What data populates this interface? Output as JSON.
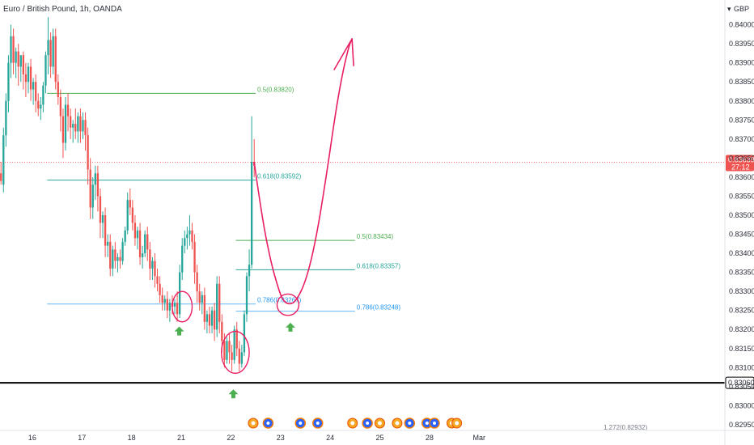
{
  "title": "Euro / British Pound, 1h, OANDA",
  "currency": "GBP",
  "colors": {
    "up": "#26a69a",
    "down": "#ef5350",
    "fib05": "#4caf50",
    "fib0618": "#26a69a",
    "fib0786": "#64b5f6",
    "fib0786_label": "#2196f3",
    "drawing": "#e91e63",
    "arrow": "#4caf50",
    "support": "#000000",
    "price_tag": "#ef5350"
  },
  "chart_data": {
    "type": "candlestick",
    "title": "Euro / British Pound, 1h, OANDA",
    "ylim": [
      0.82935,
      0.84065
    ],
    "xlim": [
      15.35,
      29.95
    ],
    "y_ticks": [
      "0.84000",
      "0.83950",
      "0.83900",
      "0.83850",
      "0.83800",
      "0.83750",
      "0.83700",
      "0.83650",
      "0.83600",
      "0.83550",
      "0.83500",
      "0.83450",
      "0.83400",
      "0.83350",
      "0.83300",
      "0.83250",
      "0.83200",
      "0.83150",
      "0.83100",
      "0.83050",
      "0.83000",
      "0.82950"
    ],
    "x_ticks": [
      {
        "label": "16",
        "t": 16
      },
      {
        "label": "17",
        "t": 17
      },
      {
        "label": "18",
        "t": 18
      },
      {
        "label": "21",
        "t": 19
      },
      {
        "label": "22",
        "t": 20
      },
      {
        "label": "23",
        "t": 21
      },
      {
        "label": "24",
        "t": 22
      },
      {
        "label": "25",
        "t": 23
      },
      {
        "label": "28",
        "t": 24
      },
      {
        "label": "Mar",
        "t": 25
      }
    ],
    "last_price": {
      "value": "0.83639",
      "countdown": "27:12",
      "y": 0.83639
    },
    "support_level": {
      "value": "0.83060",
      "y": 0.8306
    },
    "fib_levels": [
      {
        "label": "0.5(0.83820)",
        "y": 0.8382,
        "t0": 16.3,
        "t1": 20.5,
        "color_key": "fib05"
      },
      {
        "label": "0.618(0.83592)",
        "y": 0.83592,
        "t0": 16.3,
        "t1": 20.5,
        "color_key": "fib0618"
      },
      {
        "label": "0.786(0.83267)",
        "y": 0.83267,
        "t0": 16.3,
        "t1": 20.5,
        "color_key": "fib0786"
      },
      {
        "label": "0.5(0.83434)",
        "y": 0.83434,
        "t0": 20.1,
        "t1": 22.5,
        "color_key": "fib05"
      },
      {
        "label": "0.618(0.83357)",
        "y": 0.83357,
        "t0": 20.1,
        "t1": 22.5,
        "color_key": "fib0618"
      },
      {
        "label": "0.786(0.83248)",
        "y": 0.83248,
        "t0": 20.1,
        "t1": 22.5,
        "color_key": "fib0786"
      }
    ],
    "bottom_label": "1.272(0.82932)",
    "series": [
      {
        "t": 15.37,
        "o": 0.8361,
        "h": 0.8364,
        "c": 0.8359,
        "l": 0.8358
      },
      {
        "t": 15.42,
        "o": 0.8358,
        "h": 0.8373,
        "c": 0.8371,
        "l": 0.8356
      },
      {
        "t": 15.47,
        "o": 0.8371,
        "h": 0.8382,
        "c": 0.838,
        "l": 0.8368
      },
      {
        "t": 15.52,
        "o": 0.838,
        "h": 0.8392,
        "c": 0.839,
        "l": 0.8377
      },
      {
        "t": 15.57,
        "o": 0.839,
        "h": 0.84,
        "c": 0.8397,
        "l": 0.8386
      },
      {
        "t": 15.62,
        "o": 0.8397,
        "h": 0.8399,
        "c": 0.839,
        "l": 0.8387
      },
      {
        "t": 15.67,
        "o": 0.839,
        "h": 0.8394,
        "c": 0.8393,
        "l": 0.8386
      },
      {
        "t": 15.72,
        "o": 0.8393,
        "h": 0.8395,
        "c": 0.8389,
        "l": 0.8384
      },
      {
        "t": 15.77,
        "o": 0.8389,
        "h": 0.8392,
        "c": 0.8392,
        "l": 0.8385
      },
      {
        "t": 15.82,
        "o": 0.8392,
        "h": 0.8393,
        "c": 0.8387,
        "l": 0.8383
      },
      {
        "t": 15.87,
        "o": 0.8387,
        "h": 0.839,
        "c": 0.8385,
        "l": 0.8381
      },
      {
        "t": 15.92,
        "o": 0.8385,
        "h": 0.839,
        "c": 0.8389,
        "l": 0.8382
      },
      {
        "t": 15.97,
        "o": 0.8389,
        "h": 0.8391,
        "c": 0.8383,
        "l": 0.838
      },
      {
        "t": 16.02,
        "o": 0.8383,
        "h": 0.8386,
        "c": 0.8385,
        "l": 0.8379
      },
      {
        "t": 16.07,
        "o": 0.8385,
        "h": 0.8387,
        "c": 0.838,
        "l": 0.8377
      },
      {
        "t": 16.12,
        "o": 0.838,
        "h": 0.8382,
        "c": 0.8378,
        "l": 0.8376
      },
      {
        "t": 16.17,
        "o": 0.8378,
        "h": 0.8381,
        "c": 0.8379,
        "l": 0.8375
      },
      {
        "t": 16.22,
        "o": 0.8379,
        "h": 0.8385,
        "c": 0.8384,
        "l": 0.8377
      },
      {
        "t": 16.27,
        "o": 0.8384,
        "h": 0.8393,
        "c": 0.8392,
        "l": 0.8382
      },
      {
        "t": 16.32,
        "o": 0.8392,
        "h": 0.8402,
        "c": 0.8396,
        "l": 0.8387
      },
      {
        "t": 16.37,
        "o": 0.8396,
        "h": 0.8398,
        "c": 0.8389,
        "l": 0.8386
      },
      {
        "t": 16.42,
        "o": 0.8389,
        "h": 0.8399,
        "c": 0.8397,
        "l": 0.8387
      },
      {
        "t": 16.47,
        "o": 0.8397,
        "h": 0.8399,
        "c": 0.8385,
        "l": 0.8383
      },
      {
        "t": 16.52,
        "o": 0.8385,
        "h": 0.8387,
        "c": 0.8381,
        "l": 0.8379
      },
      {
        "t": 16.57,
        "o": 0.8381,
        "h": 0.8383,
        "c": 0.8376,
        "l": 0.8372
      },
      {
        "t": 16.62,
        "o": 0.8376,
        "h": 0.8378,
        "c": 0.8369,
        "l": 0.8365
      },
      {
        "t": 16.67,
        "o": 0.8369,
        "h": 0.8381,
        "c": 0.8379,
        "l": 0.8367
      },
      {
        "t": 16.72,
        "o": 0.8379,
        "h": 0.8382,
        "c": 0.8376,
        "l": 0.8372
      },
      {
        "t": 16.77,
        "o": 0.8376,
        "h": 0.8378,
        "c": 0.8373,
        "l": 0.837
      },
      {
        "t": 16.82,
        "o": 0.8373,
        "h": 0.8375,
        "c": 0.8374,
        "l": 0.8369
      },
      {
        "t": 16.87,
        "o": 0.8374,
        "h": 0.8378,
        "c": 0.8372,
        "l": 0.837
      },
      {
        "t": 16.92,
        "o": 0.8372,
        "h": 0.8377,
        "c": 0.8376,
        "l": 0.8369
      },
      {
        "t": 16.97,
        "o": 0.8376,
        "h": 0.8378,
        "c": 0.8372,
        "l": 0.8369
      },
      {
        "t": 17.02,
        "o": 0.8372,
        "h": 0.8377,
        "c": 0.8375,
        "l": 0.837
      },
      {
        "t": 17.07,
        "o": 0.8375,
        "h": 0.8377,
        "c": 0.8371,
        "l": 0.8367
      },
      {
        "t": 17.12,
        "o": 0.8371,
        "h": 0.8373,
        "c": 0.8362,
        "l": 0.8358
      },
      {
        "t": 17.17,
        "o": 0.8362,
        "h": 0.8365,
        "c": 0.8352,
        "l": 0.8349
      },
      {
        "t": 17.22,
        "o": 0.8352,
        "h": 0.836,
        "c": 0.8358,
        "l": 0.8349
      },
      {
        "t": 17.27,
        "o": 0.8358,
        "h": 0.8363,
        "c": 0.8361,
        "l": 0.8354
      },
      {
        "t": 17.32,
        "o": 0.8361,
        "h": 0.8363,
        "c": 0.8355,
        "l": 0.8351
      },
      {
        "t": 17.37,
        "o": 0.8355,
        "h": 0.8357,
        "c": 0.8348,
        "l": 0.8344
      },
      {
        "t": 17.42,
        "o": 0.8348,
        "h": 0.8351,
        "c": 0.835,
        "l": 0.8344
      },
      {
        "t": 17.47,
        "o": 0.835,
        "h": 0.8352,
        "c": 0.8342,
        "l": 0.8339
      },
      {
        "t": 17.52,
        "o": 0.8342,
        "h": 0.8345,
        "c": 0.8343,
        "l": 0.8339
      },
      {
        "t": 17.57,
        "o": 0.8343,
        "h": 0.8345,
        "c": 0.8336,
        "l": 0.8334
      },
      {
        "t": 17.62,
        "o": 0.8336,
        "h": 0.8342,
        "c": 0.8341,
        "l": 0.8334
      },
      {
        "t": 17.67,
        "o": 0.8341,
        "h": 0.8343,
        "c": 0.8338,
        "l": 0.8336
      },
      {
        "t": 17.72,
        "o": 0.8338,
        "h": 0.834,
        "c": 0.8339,
        "l": 0.8335
      },
      {
        "t": 17.77,
        "o": 0.8339,
        "h": 0.8341,
        "c": 0.8338,
        "l": 0.8336
      },
      {
        "t": 17.82,
        "o": 0.8338,
        "h": 0.8344,
        "c": 0.8343,
        "l": 0.8337
      },
      {
        "t": 17.87,
        "o": 0.8343,
        "h": 0.8347,
        "c": 0.8346,
        "l": 0.8342
      },
      {
        "t": 17.92,
        "o": 0.8346,
        "h": 0.8356,
        "c": 0.8354,
        "l": 0.8345
      },
      {
        "t": 17.97,
        "o": 0.8354,
        "h": 0.8357,
        "c": 0.8352,
        "l": 0.835
      },
      {
        "t": 18.02,
        "o": 0.8352,
        "h": 0.8354,
        "c": 0.8348,
        "l": 0.8346
      },
      {
        "t": 18.07,
        "o": 0.8348,
        "h": 0.835,
        "c": 0.8344,
        "l": 0.8342
      },
      {
        "t": 18.12,
        "o": 0.8344,
        "h": 0.8347,
        "c": 0.8346,
        "l": 0.8341
      },
      {
        "t": 18.17,
        "o": 0.8346,
        "h": 0.8348,
        "c": 0.8339,
        "l": 0.8337
      },
      {
        "t": 18.22,
        "o": 0.8339,
        "h": 0.8342,
        "c": 0.834,
        "l": 0.8336
      },
      {
        "t": 18.27,
        "o": 0.834,
        "h": 0.8346,
        "c": 0.8345,
        "l": 0.8339
      },
      {
        "t": 18.32,
        "o": 0.8345,
        "h": 0.8347,
        "c": 0.8341,
        "l": 0.8338
      },
      {
        "t": 18.37,
        "o": 0.8341,
        "h": 0.8343,
        "c": 0.8336,
        "l": 0.8333
      },
      {
        "t": 18.42,
        "o": 0.8336,
        "h": 0.8339,
        "c": 0.8338,
        "l": 0.8333
      },
      {
        "t": 18.47,
        "o": 0.8338,
        "h": 0.834,
        "c": 0.8334,
        "l": 0.8331
      },
      {
        "t": 18.52,
        "o": 0.8334,
        "h": 0.8336,
        "c": 0.8332,
        "l": 0.833
      },
      {
        "t": 18.57,
        "o": 0.8332,
        "h": 0.8334,
        "c": 0.8329,
        "l": 0.8327
      },
      {
        "t": 18.62,
        "o": 0.8329,
        "h": 0.8331,
        "c": 0.8327,
        "l": 0.8325
      },
      {
        "t": 18.67,
        "o": 0.8327,
        "h": 0.8329,
        "c": 0.8328,
        "l": 0.8325
      },
      {
        "t": 18.72,
        "o": 0.8328,
        "h": 0.833,
        "c": 0.8325,
        "l": 0.8323
      },
      {
        "t": 18.77,
        "o": 0.8325,
        "h": 0.8328,
        "c": 0.8327,
        "l": 0.8322
      },
      {
        "t": 18.82,
        "o": 0.8327,
        "h": 0.8329,
        "c": 0.8326,
        "l": 0.8324
      },
      {
        "t": 18.87,
        "o": 0.8326,
        "h": 0.8328,
        "c": 0.8327,
        "l": 0.8324
      },
      {
        "t": 18.92,
        "o": 0.8327,
        "h": 0.833,
        "c": 0.8324,
        "l": 0.8322
      },
      {
        "t": 18.97,
        "o": 0.8324,
        "h": 0.8337,
        "c": 0.8335,
        "l": 0.8323
      },
      {
        "t": 19.02,
        "o": 0.8335,
        "h": 0.8344,
        "c": 0.8342,
        "l": 0.8333
      },
      {
        "t": 19.07,
        "o": 0.8342,
        "h": 0.8346,
        "c": 0.8344,
        "l": 0.834
      },
      {
        "t": 19.12,
        "o": 0.8344,
        "h": 0.8347,
        "c": 0.8345,
        "l": 0.8341
      },
      {
        "t": 19.17,
        "o": 0.8345,
        "h": 0.835,
        "c": 0.8346,
        "l": 0.8342
      },
      {
        "t": 19.22,
        "o": 0.8346,
        "h": 0.8348,
        "c": 0.8343,
        "l": 0.8341
      },
      {
        "t": 19.27,
        "o": 0.8343,
        "h": 0.8345,
        "c": 0.8335,
        "l": 0.8332
      },
      {
        "t": 19.32,
        "o": 0.8335,
        "h": 0.8337,
        "c": 0.833,
        "l": 0.8327
      },
      {
        "t": 19.37,
        "o": 0.833,
        "h": 0.8332,
        "c": 0.8327,
        "l": 0.8325
      },
      {
        "t": 19.42,
        "o": 0.8327,
        "h": 0.833,
        "c": 0.8329,
        "l": 0.8324
      },
      {
        "t": 19.47,
        "o": 0.8329,
        "h": 0.8331,
        "c": 0.8322,
        "l": 0.832
      },
      {
        "t": 19.52,
        "o": 0.8322,
        "h": 0.8325,
        "c": 0.8324,
        "l": 0.8319
      },
      {
        "t": 19.57,
        "o": 0.8324,
        "h": 0.8326,
        "c": 0.8321,
        "l": 0.8319
      },
      {
        "t": 19.62,
        "o": 0.8321,
        "h": 0.8326,
        "c": 0.8325,
        "l": 0.8319
      },
      {
        "t": 19.67,
        "o": 0.8325,
        "h": 0.8327,
        "c": 0.832,
        "l": 0.8317
      },
      {
        "t": 19.72,
        "o": 0.832,
        "h": 0.8334,
        "c": 0.8332,
        "l": 0.8318
      },
      {
        "t": 19.77,
        "o": 0.8332,
        "h": 0.8334,
        "c": 0.8322,
        "l": 0.8319
      },
      {
        "t": 19.82,
        "o": 0.8322,
        "h": 0.8324,
        "c": 0.8317,
        "l": 0.8314
      },
      {
        "t": 19.87,
        "o": 0.8317,
        "h": 0.8319,
        "c": 0.8312,
        "l": 0.831
      },
      {
        "t": 19.92,
        "o": 0.8312,
        "h": 0.8318,
        "c": 0.8317,
        "l": 0.8311
      },
      {
        "t": 19.97,
        "o": 0.8317,
        "h": 0.8319,
        "c": 0.8314,
        "l": 0.8311
      },
      {
        "t": 20.02,
        "o": 0.8314,
        "h": 0.8316,
        "c": 0.8312,
        "l": 0.8309
      },
      {
        "t": 20.07,
        "o": 0.8312,
        "h": 0.8321,
        "c": 0.832,
        "l": 0.8311
      },
      {
        "t": 20.12,
        "o": 0.832,
        "h": 0.8322,
        "c": 0.8315,
        "l": 0.8313
      },
      {
        "t": 20.17,
        "o": 0.8315,
        "h": 0.8317,
        "c": 0.8311,
        "l": 0.8309
      },
      {
        "t": 20.22,
        "o": 0.8311,
        "h": 0.8316,
        "c": 0.8314,
        "l": 0.831
      },
      {
        "t": 20.27,
        "o": 0.8314,
        "h": 0.8325,
        "c": 0.8324,
        "l": 0.8313
      },
      {
        "t": 20.32,
        "o": 0.8324,
        "h": 0.8335,
        "c": 0.8334,
        "l": 0.8322
      },
      {
        "t": 20.37,
        "o": 0.8334,
        "h": 0.8341,
        "c": 0.8337,
        "l": 0.833
      },
      {
        "t": 20.42,
        "o": 0.8337,
        "h": 0.8376,
        "c": 0.8364,
        "l": 0.8336
      },
      {
        "t": 20.47,
        "o": 0.8364,
        "h": 0.837,
        "c": 0.8363,
        "l": 0.836
      }
    ],
    "projection": [
      [
        20.47,
        0.83639
      ],
      [
        20.62,
        0.835
      ],
      [
        20.8,
        0.8338
      ],
      [
        20.95,
        0.8331
      ],
      [
        21.05,
        0.83275
      ],
      [
        21.18,
        0.83265
      ],
      [
        21.32,
        0.83275
      ],
      [
        21.52,
        0.8333
      ],
      [
        21.72,
        0.8344
      ],
      [
        21.92,
        0.836
      ],
      [
        22.12,
        0.8378
      ],
      [
        22.26,
        0.8388
      ],
      [
        22.38,
        0.83945
      ],
      [
        22.44,
        0.83963
      ]
    ],
    "circles": [
      {
        "t": 19.02,
        "y": 0.8326,
        "rt": 0.2,
        "ry": 0.0004
      },
      {
        "t": 20.09,
        "y": 0.8314,
        "rt": 0.28,
        "ry": 0.00055
      },
      {
        "t": 21.15,
        "y": 0.83265,
        "rt": 0.22,
        "ry": 0.00028
      }
    ],
    "arrows": [
      {
        "t": 18.96,
        "y": 0.83195
      },
      {
        "t": 20.05,
        "y": 0.8303
      },
      {
        "t": 21.2,
        "y": 0.83205
      }
    ],
    "event_icons": [
      {
        "t": 20.45,
        "kind": "flag"
      },
      {
        "t": 20.75,
        "kind": "globe"
      },
      {
        "t": 21.4,
        "kind": "globe"
      },
      {
        "t": 21.75,
        "kind": "globe"
      },
      {
        "t": 22.45,
        "kind": "flag"
      },
      {
        "t": 22.75,
        "kind": "globe"
      },
      {
        "t": 23.0,
        "kind": "flag"
      },
      {
        "t": 23.35,
        "kind": "flag"
      },
      {
        "t": 23.6,
        "kind": "globe"
      },
      {
        "t": 23.95,
        "kind": "globe"
      },
      {
        "t": 24.1,
        "kind": "globe"
      },
      {
        "t": 24.45,
        "kind": "flag"
      },
      {
        "t": 24.55,
        "kind": "flag"
      }
    ]
  }
}
